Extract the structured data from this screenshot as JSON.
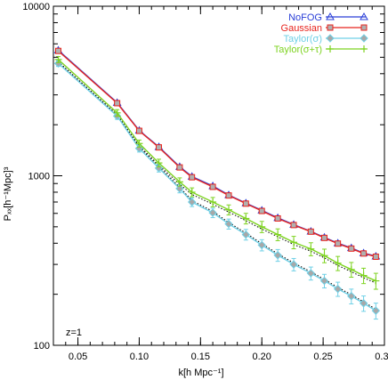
{
  "chart_data": {
    "type": "line",
    "title": "",
    "xlabel": "k[h Mpc⁻¹]",
    "ylabel": "Pₓₓ[h⁻¹Mpc]³",
    "xlim": [
      0.03,
      0.3
    ],
    "ylim": [
      100,
      10000
    ],
    "yscale": "log",
    "x_ticks": [
      {
        "value": 0.05,
        "label": "0.05"
      },
      {
        "value": 0.1,
        "label": "0.10"
      },
      {
        "value": 0.15,
        "label": "0.15"
      },
      {
        "value": 0.2,
        "label": "0.20"
      },
      {
        "value": 0.25,
        "label": "0.25"
      },
      {
        "value": 0.3,
        "label": "0.30"
      }
    ],
    "y_ticks": [
      {
        "value": 100,
        "label": "100"
      },
      {
        "value": 1000,
        "label": "1000"
      },
      {
        "value": 10000,
        "label": "10000"
      }
    ],
    "annotation": "z=1",
    "legend_position": "top-right",
    "x": [
      0.034,
      0.082,
      0.1,
      0.116,
      0.133,
      0.143,
      0.16,
      0.173,
      0.187,
      0.2,
      0.213,
      0.226,
      0.24,
      0.251,
      0.262,
      0.273,
      0.283,
      0.293
    ],
    "series": [
      {
        "name": "NoFOG",
        "color": "#2a3fd8",
        "marker": "triangle",
        "error_bars": false,
        "values": [
          5500,
          2700,
          1850,
          1480,
          1130,
          990,
          870,
          770,
          690,
          625,
          565,
          515,
          470,
          433,
          400,
          375,
          350,
          335
        ]
      },
      {
        "name": "Gaussian",
        "color": "#e8251f",
        "marker": "square",
        "error_bars": false,
        "values": [
          5450,
          2680,
          1840,
          1470,
          1120,
          980,
          860,
          765,
          685,
          620,
          560,
          512,
          468,
          430,
          398,
          372,
          348,
          333
        ]
      },
      {
        "name": "Taylor(σ)",
        "color": "#6fd0e6",
        "marker": "diamond",
        "error_bars": true,
        "values": [
          4600,
          2250,
          1450,
          1110,
          840,
          700,
          605,
          520,
          450,
          390,
          340,
          300,
          266,
          240,
          215,
          195,
          177,
          160
        ]
      },
      {
        "name": "Taylor(σ+τ)",
        "color": "#7ed321",
        "marker": "plus",
        "error_bars": true,
        "values": [
          4850,
          2350,
          1550,
          1190,
          920,
          800,
          700,
          630,
          560,
          500,
          450,
          405,
          370,
          338,
          305,
          280,
          258,
          240
        ]
      }
    ]
  }
}
